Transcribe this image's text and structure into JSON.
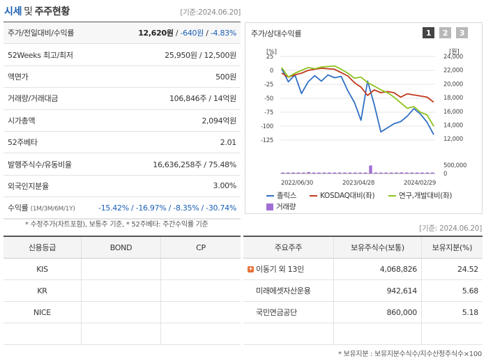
{
  "header": {
    "title_a": "시세",
    "title_sep": "및",
    "title_b": "주주현황",
    "base_date": "[기준:2024.06.20]"
  },
  "info_rows": [
    {
      "label": "주가/전일대비/수익률",
      "v1": "12,620원",
      "sep1": " / ",
      "v2": "-640원",
      "sep2": " / ",
      "v3": "-4.83%"
    },
    {
      "label": "52Weeks 최고/최저",
      "value": "25,950원 / 12,500원"
    },
    {
      "label": "액면가",
      "value": "500원"
    },
    {
      "label": "거래량/거래대금",
      "value": "106,846주 / 14억원"
    },
    {
      "label": "시가총액",
      "value": "2,094억원"
    },
    {
      "label": "52주베타",
      "value": "2.01"
    },
    {
      "label": "발행주식수/유동비율",
      "value": "16,636,258주 / 75.48%"
    },
    {
      "label": "외국인지분율",
      "value": "3.00%"
    },
    {
      "label": "수익률",
      "label_small": "(1M/3M/6M/1Y)",
      "value": "-15.42% / -16.97% / -8.35% / -30.74%"
    }
  ],
  "note": "* 수정주가(차트포함), 보통주 기준, * 52주베타: 주간수익률 기준",
  "chart": {
    "title": "주가/상대수익률",
    "pages": [
      "1",
      "2",
      "3"
    ],
    "legend": {
      "s1": "졸릭스",
      "s2": "KOSDAQ대비(좌)",
      "s3": "연구,개발대비(좌)",
      "vol": "거래량"
    },
    "colors": {
      "s1": "#2f6fc4",
      "s2": "#c0391b",
      "s3": "#8ec21e",
      "vol": "#a16fd4"
    }
  },
  "chart_data": {
    "type": "line",
    "x_ticks": [
      "2022/06/30",
      "2023/04/28",
      "2024/02/29"
    ],
    "left_axis": {
      "unit": "[%]",
      "ticks": [
        25,
        0,
        -25,
        -50,
        -75,
        -100,
        -125
      ],
      "range": [
        -135,
        25
      ]
    },
    "right_axis": {
      "unit": "[원]",
      "ticks": [
        24000,
        22000,
        20000,
        18000,
        16000,
        14000,
        12000
      ],
      "range": [
        11000,
        24000
      ]
    },
    "volume_axis": {
      "ticks": [
        500000,
        0
      ],
      "range": [
        0,
        500000
      ]
    },
    "series": [
      {
        "name": "졸릭스",
        "axis": "right",
        "values": [
          22200,
          20300,
          21300,
          18600,
          20300,
          21200,
          20400,
          21300,
          20900,
          21100,
          19000,
          17300,
          14700,
          20400,
          17000,
          13000,
          13600,
          14200,
          14500,
          15300,
          16400,
          15600,
          14400,
          12600
        ]
      },
      {
        "name": "KOSDAQ대비(좌)",
        "name_short": "KOSDAQ대비",
        "axis": "left",
        "values": [
          -5,
          -12,
          -8,
          -5,
          0,
          2,
          4,
          3,
          2,
          -4,
          -10,
          -22,
          -30,
          -45,
          -35,
          -40,
          -38,
          -40,
          -48,
          -42,
          -44,
          -46,
          -48,
          -57
        ]
      },
      {
        "name": "연구,개발대비(좌)",
        "name_short": "연구,개발대비",
        "axis": "left",
        "values": [
          5,
          -12,
          -5,
          0,
          5,
          3,
          6,
          7,
          8,
          2,
          -5,
          -14,
          -12,
          -22,
          -28,
          -35,
          -40,
          -48,
          -58,
          -68,
          -65,
          -75,
          -80,
          -100
        ]
      }
    ],
    "volume": [
      20000,
      40000,
      30000,
      50000,
      45000,
      90000,
      30000,
      25000,
      40000,
      30000,
      20000,
      25000,
      35000,
      45000,
      30000,
      35000,
      40000,
      480000,
      40000,
      30000,
      35000,
      45000,
      50000,
      70000,
      35000,
      40000,
      45000,
      30000,
      60000,
      25000
    ]
  },
  "credit": {
    "headers": [
      "신용등급",
      "BOND",
      "CP"
    ],
    "rows": [
      [
        "KIS",
        "",
        ""
      ],
      [
        "KR",
        "",
        ""
      ],
      [
        "NICE",
        "",
        ""
      ]
    ]
  },
  "holders": {
    "base_date": "[기준: 2024.06.20]",
    "headers": [
      "주요주주",
      "보유주식수(보통)",
      "보유지분(%)"
    ],
    "rows": [
      {
        "name": "이동기 외 13인",
        "shares": "4,068,826",
        "pct": "24.52",
        "expand": true
      },
      {
        "name": "미래에셋자산운용",
        "shares": "942,614",
        "pct": "5.68",
        "expand": false
      },
      {
        "name": "국민연금공단",
        "shares": "860,000",
        "pct": "5.18",
        "expand": false
      }
    ],
    "footnote": "* 보유지분 : 보유지분수식수/지수산정주식수×100"
  }
}
